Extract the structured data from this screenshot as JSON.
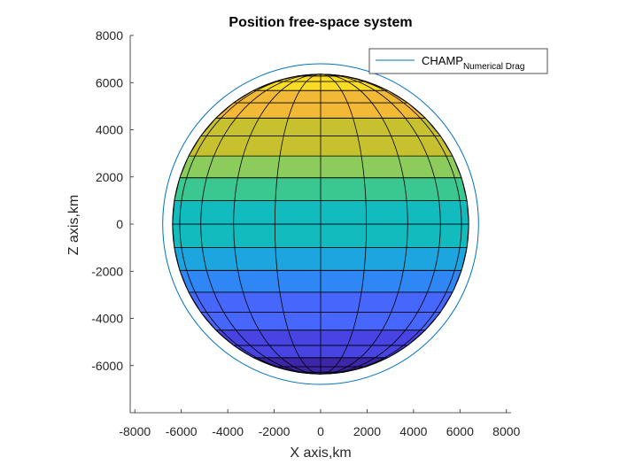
{
  "chart_data": {
    "type": "line",
    "title": "Position free-space system",
    "xlabel": "X axis,km",
    "ylabel": "Z axis,km",
    "xlim": [
      -8200,
      8200
    ],
    "ylim": [
      -8000,
      8000
    ],
    "x_ticks": [
      -8000,
      -6000,
      -4000,
      -2000,
      0,
      2000,
      4000,
      6000,
      8000
    ],
    "y_ticks": [
      -6000,
      -4000,
      -2000,
      0,
      2000,
      4000,
      6000,
      8000
    ],
    "x_tick_labels": [
      "-8000",
      "-6000",
      "-4000",
      "-2000",
      "0",
      "2000",
      "4000",
      "6000",
      "8000"
    ],
    "y_tick_labels": [
      "-6000",
      "-4000",
      "-2000",
      "0",
      "2000",
      "4000",
      "6000",
      "8000"
    ],
    "grid": false,
    "legend": {
      "position": "top-right",
      "entries": [
        {
          "label": "CHAMP",
          "subscript": "Numerical Drag",
          "color": "#0072BD"
        }
      ]
    },
    "series": [
      {
        "name": "CHAMP Numerical Drag",
        "type": "orbit-circle",
        "radius_km": 6800,
        "color": "#0072BD"
      }
    ],
    "earth_surface": {
      "equatorial_radius_km": 6378,
      "polar_radius_km": 6357,
      "latitude_bands": 20,
      "meridian_x_values": [
        -6378,
        -6066,
        -5160,
        -3749,
        -1971,
        0,
        1971,
        3749,
        5160,
        6066,
        6378
      ],
      "colormap": [
        "#3E26A8",
        "#4744E3",
        "#4767FC",
        "#2F87F5",
        "#1CA5DE",
        "#11BBBE",
        "#3BC890",
        "#8CCC5C",
        "#C7C12F",
        "#F1B935",
        "#FBDC25"
      ]
    }
  }
}
